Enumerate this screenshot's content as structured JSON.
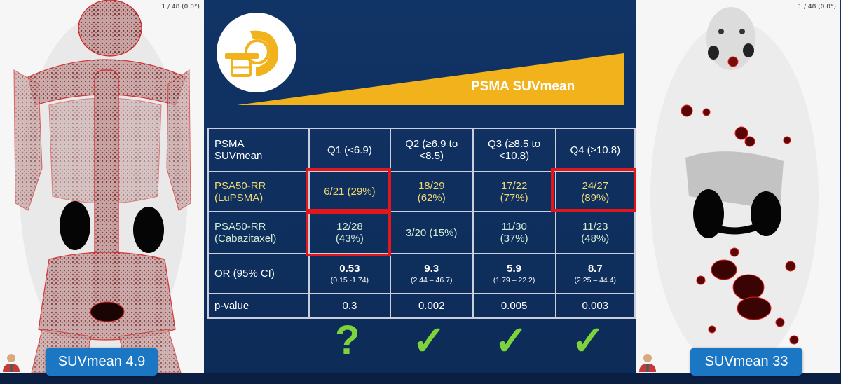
{
  "left_panel": {
    "counter": "1 / 48 (0.0°)",
    "label": "SUVmean 4.9"
  },
  "right_panel": {
    "counter": "1 / 48 (0.0°)",
    "label": "SUVmean 33"
  },
  "header": {
    "logo_icon": "pet-scanner-icon",
    "wedge_label": "PSMA SUVmean"
  },
  "table": {
    "header": [
      "PSMA SUVmean",
      "Q1 (<6.9)",
      "Q2 (≥6.9 to <8.5)",
      "Q3 (≥8.5 to <10.8)",
      "Q4 (≥10.8)"
    ],
    "header_label_lines": [
      "PSMA",
      "SUVmean"
    ],
    "q2_lines": [
      "Q2 (≥6.9 to",
      "<8.5)"
    ],
    "q3_lines": [
      "Q3 (≥8.5 to",
      "<10.8)"
    ],
    "lupsma": {
      "label_lines": [
        "PSA50-RR",
        "(LuPSMA)"
      ],
      "q1": "6/21 (29%)",
      "q2": [
        "18/29",
        "(62%)"
      ],
      "q3": [
        "17/22",
        "(77%)"
      ],
      "q4": [
        "24/27",
        "(89%)"
      ]
    },
    "cabazitaxel": {
      "label_lines": [
        "PSA50-RR",
        "(Cabazitaxel)"
      ],
      "q1": [
        "12/28",
        "(43%)"
      ],
      "q2": "3/20 (15%)",
      "q3": [
        "11/30",
        "(37%)"
      ],
      "q4": [
        "11/23",
        "(48%)"
      ]
    },
    "or_row": {
      "label": "OR (95% CI)",
      "q1": {
        "value": "0.53",
        "ci": "(0.15 -1.74)"
      },
      "q2": {
        "value": "9.3",
        "ci": "(2.44 – 46.7)"
      },
      "q3": {
        "value": "5.9",
        "ci": "(1.79 – 22.2)"
      },
      "q4": {
        "value": "8.7",
        "ci": "(2.25 – 44.4)"
      }
    },
    "p_row": {
      "label": "p-value",
      "q1": "0.3",
      "q2": "0.002",
      "q3": "0.005",
      "q4": "0.003"
    }
  },
  "marks": {
    "q1": "?",
    "q2": "✓",
    "q3": "✓",
    "q4": "✓"
  },
  "colors": {
    "background": "#113466",
    "accent": "#f2b21c",
    "highlight": "#e3161b",
    "check": "#7cd33c",
    "label_box": "#1b76c4"
  }
}
